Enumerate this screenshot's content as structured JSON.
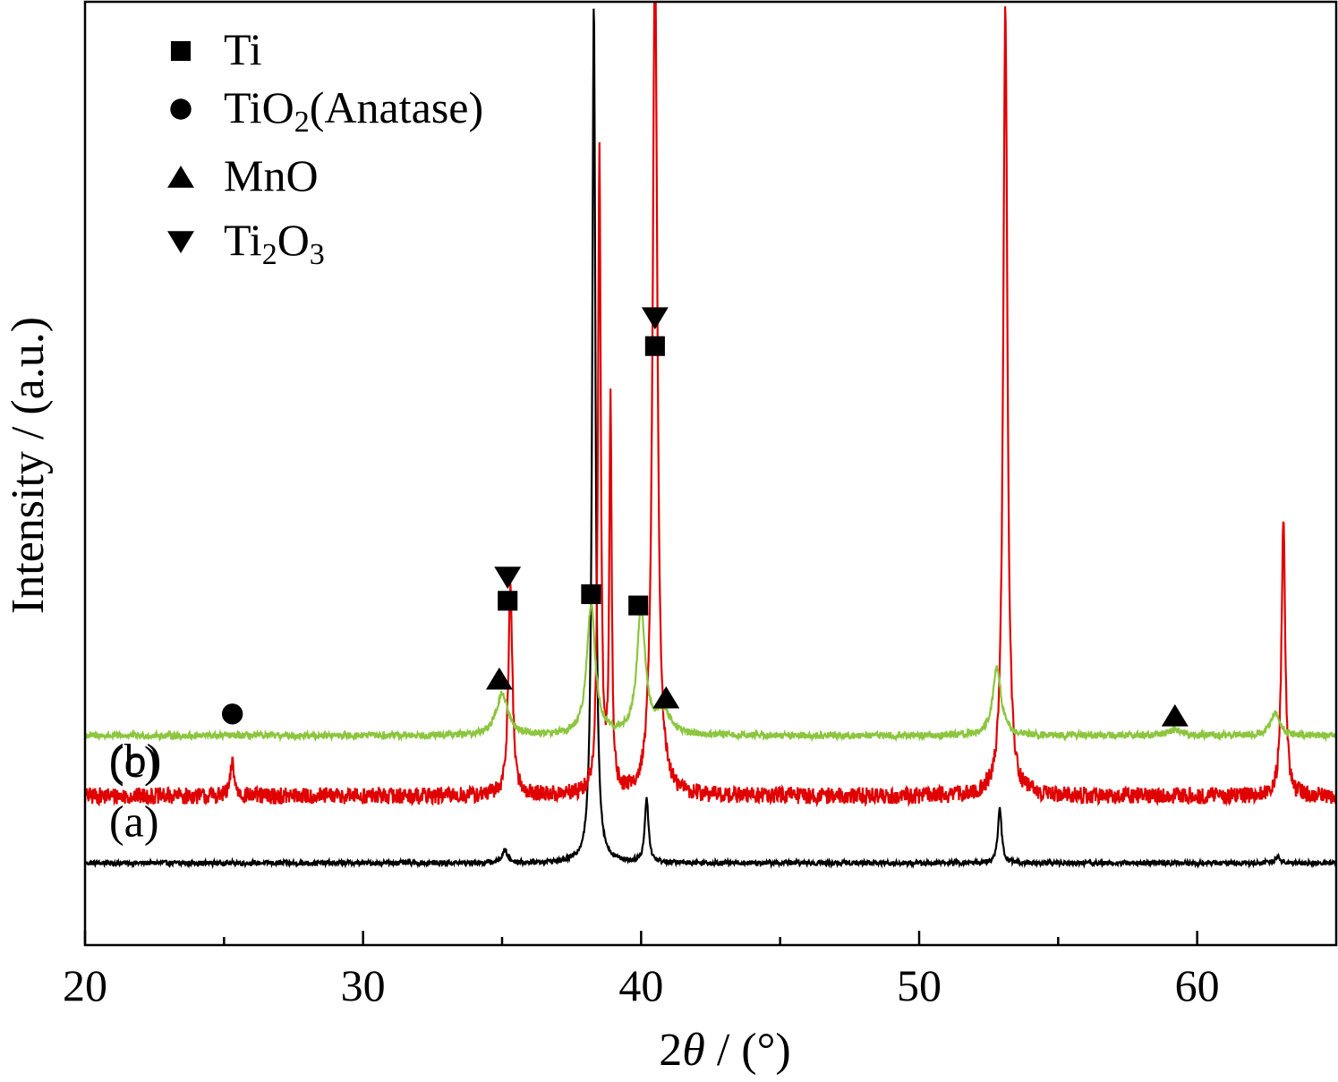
{
  "chart_data": {
    "type": "line",
    "title": "",
    "xlabel": {
      "prefix": "2",
      "symbol": "θ",
      "suffix": " / (°)"
    },
    "ylabel": "Intensity / (a.u.)",
    "xlim": [
      20,
      65
    ],
    "ylim": [
      0,
      100
    ],
    "x_major_ticks": [
      20,
      30,
      40,
      50,
      60
    ],
    "x_minor_ticks": [
      25,
      35,
      45,
      55
    ],
    "grid": false,
    "legend_position": "top-left",
    "legend": [
      {
        "marker": "square",
        "label": "Ti",
        "label_parts": [
          {
            "t": "Ti"
          }
        ]
      },
      {
        "marker": "circle",
        "label": "TiO2(Anatase)",
        "label_parts": [
          {
            "t": "TiO"
          },
          {
            "t": "2",
            "sub": true
          },
          {
            "t": "(Anatase)"
          }
        ]
      },
      {
        "marker": "triangle-up",
        "label": "MnO",
        "label_parts": [
          {
            "t": "MnO"
          }
        ]
      },
      {
        "marker": "triangle-down",
        "label": "Ti2O3",
        "label_parts": [
          {
            "t": "Ti"
          },
          {
            "t": "2",
            "sub": true
          },
          {
            "t": "O"
          },
          {
            "t": "3",
            "sub": true
          }
        ]
      }
    ],
    "series": [
      {
        "label": "(a)",
        "color": "#000000",
        "baseline": 8.7,
        "noise": 0.25,
        "peaks": [
          {
            "x": 35.1,
            "h": 1.3,
            "w": 0.12
          },
          {
            "x": 38.3,
            "h": 91.0,
            "w": 0.07
          },
          {
            "x": 40.2,
            "h": 6.8,
            "w": 0.08
          },
          {
            "x": 52.9,
            "h": 5.8,
            "w": 0.08
          },
          {
            "x": 62.9,
            "h": 0.8,
            "w": 0.1
          }
        ]
      },
      {
        "label": "(b)",
        "color": "#e00000",
        "baseline": 15.8,
        "noise": 0.9,
        "peaks": [
          {
            "x": 25.3,
            "h": 3.6,
            "w": 0.08
          },
          {
            "x": 35.3,
            "h": 22.0,
            "w": 0.09
          },
          {
            "x": 38.5,
            "h": 68.0,
            "w": 0.06
          },
          {
            "x": 38.9,
            "h": 41.0,
            "w": 0.05
          },
          {
            "x": 40.5,
            "h": 90.0,
            "w": 0.1
          },
          {
            "x": 53.1,
            "h": 84.0,
            "w": 0.09
          },
          {
            "x": 63.1,
            "h": 29.0,
            "w": 0.08
          }
        ]
      },
      {
        "label": "(c)",
        "color": "#8cc63f",
        "baseline": 22.2,
        "noise": 0.35,
        "peaks": [
          {
            "x": 35.0,
            "h": 4.4,
            "w": 0.25
          },
          {
            "x": 38.2,
            "h": 13.8,
            "w": 0.18
          },
          {
            "x": 40.0,
            "h": 13.2,
            "w": 0.18
          },
          {
            "x": 40.8,
            "h": 2.5,
            "w": 0.3
          },
          {
            "x": 52.8,
            "h": 7.2,
            "w": 0.18
          },
          {
            "x": 59.2,
            "h": 0.6,
            "w": 0.3
          },
          {
            "x": 62.8,
            "h": 2.4,
            "w": 0.2
          }
        ]
      }
    ],
    "markers": [
      {
        "type": "triangle-down",
        "x": 35.2,
        "y": 39.0
      },
      {
        "type": "square",
        "x": 35.2,
        "y": 36.5
      },
      {
        "type": "square",
        "x": 38.2,
        "y": 37.2
      },
      {
        "type": "square",
        "x": 39.9,
        "y": 36.0
      },
      {
        "type": "triangle-down",
        "x": 40.5,
        "y": 66.5
      },
      {
        "type": "square",
        "x": 40.5,
        "y": 63.5
      },
      {
        "type": "circle",
        "x": 25.3,
        "y": 24.5
      },
      {
        "type": "triangle-up",
        "x": 34.9,
        "y": 28.2
      },
      {
        "type": "triangle-up",
        "x": 40.9,
        "y": 26.2
      },
      {
        "type": "triangle-up",
        "x": 59.2,
        "y": 24.3
      }
    ]
  }
}
